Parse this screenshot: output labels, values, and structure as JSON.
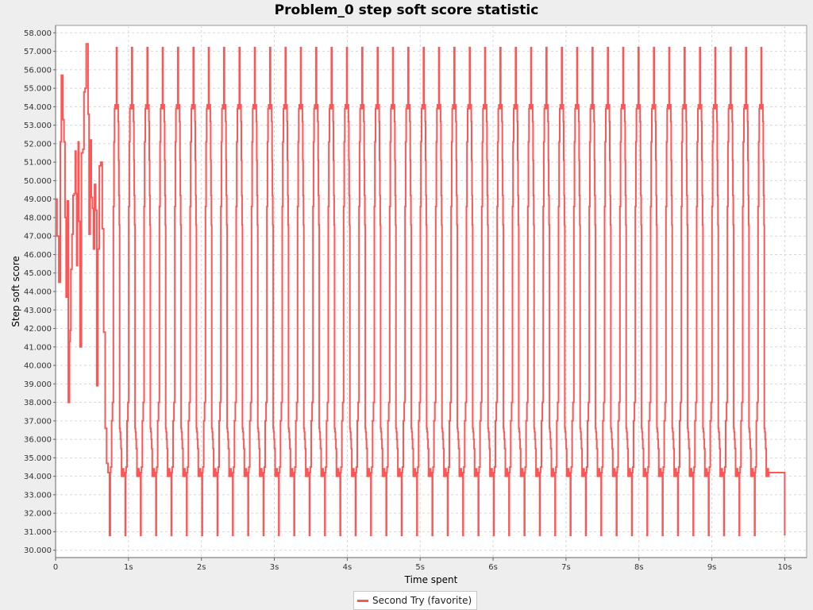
{
  "chart_data": {
    "type": "line",
    "title": "Problem_0 step soft score statistic",
    "xlabel": "Time spent",
    "ylabel": "Step soft score",
    "xlim": [
      0,
      10.3
    ],
    "ylim": [
      29.6,
      58.4
    ],
    "x_ticks": [
      {
        "value": 0,
        "label": "0"
      },
      {
        "value": 1,
        "label": "1s"
      },
      {
        "value": 2,
        "label": "2s"
      },
      {
        "value": 3,
        "label": "3s"
      },
      {
        "value": 4,
        "label": "4s"
      },
      {
        "value": 5,
        "label": "5s"
      },
      {
        "value": 6,
        "label": "6s"
      },
      {
        "value": 7,
        "label": "7s"
      },
      {
        "value": 8,
        "label": "8s"
      },
      {
        "value": 9,
        "label": "9s"
      },
      {
        "value": 10,
        "label": "10s"
      }
    ],
    "y_ticks": [
      {
        "value": 30,
        "label": "30.000"
      },
      {
        "value": 31,
        "label": "31.000"
      },
      {
        "value": 32,
        "label": "32.000"
      },
      {
        "value": 33,
        "label": "33.000"
      },
      {
        "value": 34,
        "label": "34.000"
      },
      {
        "value": 35,
        "label": "35.000"
      },
      {
        "value": 36,
        "label": "36.000"
      },
      {
        "value": 37,
        "label": "37.000"
      },
      {
        "value": 38,
        "label": "38.000"
      },
      {
        "value": 39,
        "label": "39.000"
      },
      {
        "value": 40,
        "label": "40.000"
      },
      {
        "value": 41,
        "label": "41.000"
      },
      {
        "value": 42,
        "label": "42.000"
      },
      {
        "value": 43,
        "label": "43.000"
      },
      {
        "value": 44,
        "label": "44.000"
      },
      {
        "value": 45,
        "label": "45.000"
      },
      {
        "value": 46,
        "label": "46.000"
      },
      {
        "value": 47,
        "label": "47.000"
      },
      {
        "value": 48,
        "label": "48.000"
      },
      {
        "value": 49,
        "label": "49.000"
      },
      {
        "value": 50,
        "label": "50.000"
      },
      {
        "value": 51,
        "label": "51.000"
      },
      {
        "value": 52,
        "label": "52.000"
      },
      {
        "value": 53,
        "label": "53.000"
      },
      {
        "value": 54,
        "label": "54.000"
      },
      {
        "value": 55,
        "label": "55.000"
      },
      {
        "value": 56,
        "label": "56.000"
      },
      {
        "value": 57,
        "label": "57.000"
      },
      {
        "value": 58,
        "label": "58.000"
      }
    ],
    "grid": true,
    "legend_position": "bottom",
    "series": [
      {
        "name": "Second Try (favorite)",
        "color": "#ff5555",
        "step": true,
        "initial_points": [
          [
            0.0,
            49.0
          ],
          [
            0.02,
            47.0
          ],
          [
            0.045,
            44.5
          ],
          [
            0.065,
            52.1
          ],
          [
            0.08,
            55.7
          ],
          [
            0.1,
            53.3
          ],
          [
            0.115,
            52.1
          ],
          [
            0.13,
            48.0
          ],
          [
            0.145,
            43.7
          ],
          [
            0.16,
            48.9
          ],
          [
            0.175,
            38.0
          ],
          [
            0.19,
            41.3
          ],
          [
            0.2,
            41.9
          ],
          [
            0.21,
            45.2
          ],
          [
            0.225,
            47.1
          ],
          [
            0.24,
            49.2
          ],
          [
            0.255,
            49.3
          ],
          [
            0.27,
            51.6
          ],
          [
            0.28,
            49.3
          ],
          [
            0.29,
            45.4
          ],
          [
            0.3,
            48.5
          ],
          [
            0.31,
            52.1
          ],
          [
            0.32,
            47.8
          ],
          [
            0.335,
            41.0
          ],
          [
            0.355,
            51.5
          ],
          [
            0.375,
            51.7
          ],
          [
            0.39,
            54.8
          ],
          [
            0.405,
            55.0
          ],
          [
            0.42,
            57.4
          ],
          [
            0.445,
            53.6
          ],
          [
            0.46,
            47.1
          ],
          [
            0.475,
            52.2
          ],
          [
            0.49,
            49.1
          ],
          [
            0.505,
            48.5
          ],
          [
            0.52,
            46.3
          ],
          [
            0.535,
            49.8
          ],
          [
            0.55,
            48.4
          ],
          [
            0.565,
            38.9
          ],
          [
            0.58,
            46.3
          ],
          [
            0.6,
            50.8
          ],
          [
            0.62,
            51.0
          ],
          [
            0.64,
            47.4
          ],
          [
            0.66,
            41.8
          ],
          [
            0.68,
            36.6
          ],
          [
            0.7,
            34.7
          ],
          [
            0.72,
            34.2
          ],
          [
            0.74,
            30.8
          ]
        ],
        "cycle": {
          "start": 0.745,
          "period": 0.2105,
          "count": 43,
          "pattern": [
            [
              0.0,
              30.8
            ],
            [
              0.005,
              34.2
            ],
            [
              0.012,
              34.5
            ],
            [
              0.024,
              37.0
            ],
            [
              0.036,
              38.0
            ],
            [
              0.048,
              48.6
            ],
            [
              0.056,
              52.1
            ],
            [
              0.064,
              53.9
            ],
            [
              0.072,
              54.1
            ],
            [
              0.08,
              53.9
            ],
            [
              0.086,
              54.1
            ],
            [
              0.09,
              57.2
            ],
            [
              0.097,
              54.1
            ],
            [
              0.103,
              53.9
            ],
            [
              0.109,
              54.1
            ],
            [
              0.114,
              53.2
            ],
            [
              0.119,
              51.1
            ],
            [
              0.124,
              49.2
            ],
            [
              0.129,
              47.6
            ],
            [
              0.134,
              36.6
            ],
            [
              0.14,
              36.4
            ],
            [
              0.146,
              36.0
            ],
            [
              0.152,
              35.5
            ],
            [
              0.16,
              34.0
            ],
            [
              0.168,
              34.4
            ],
            [
              0.172,
              34.0
            ],
            [
              0.18,
              34.4
            ],
            [
              0.188,
              34.0
            ],
            [
              0.196,
              34.2
            ]
          ]
        }
      }
    ]
  }
}
